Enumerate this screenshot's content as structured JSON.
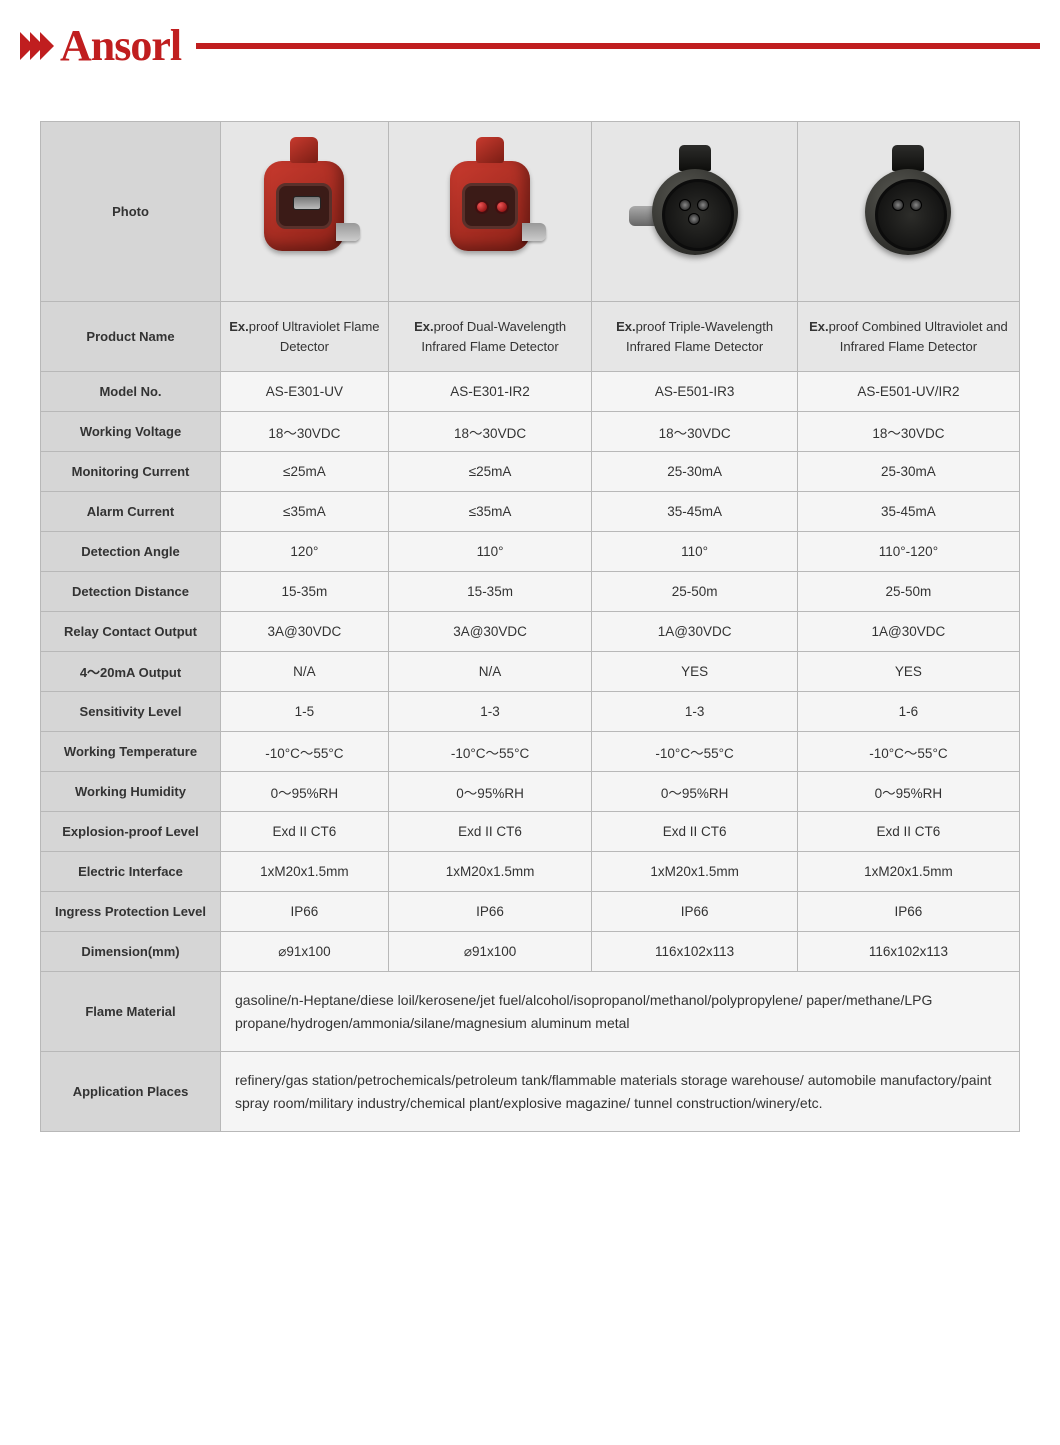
{
  "brand": "Ansorl",
  "colors": {
    "brand_red": "#c01e1f",
    "header_bg": "#d6d6d6",
    "cell_bg": "#f5f5f5",
    "photo_bg": "#e6e6e6",
    "border": "#b8b8b8",
    "text": "#333333"
  },
  "row_labels": {
    "photo": "Photo",
    "product_name": "Product Name",
    "model_no": "Model No.",
    "working_voltage": "Working Voltage",
    "monitoring_current": "Monitoring Current",
    "alarm_current": "Alarm Current",
    "detection_angle": "Detection Angle",
    "detection_distance": "Detection Distance",
    "relay_contact_output": "Relay Contact Output",
    "output_4_20": "4～20mA Output",
    "sensitivity_level": "Sensitivity Level",
    "working_temperature": "Working Temperature",
    "working_humidity": "Working Humidity",
    "explosion_proof_level": "Explosion-proof Level",
    "electric_interface": "Electric Interface",
    "ingress_protection": "Ingress Protection Level",
    "dimension": "Dimension(mm)",
    "flame_material": "Flame Material",
    "application_places": "Application Places"
  },
  "products": [
    {
      "name_prefix": "Ex.",
      "name_rest": "proof Ultraviolet Flame Detector",
      "model": "AS-E301-UV",
      "voltage": "18～30VDC",
      "mon_current": "≤25mA",
      "alarm_current": "≤35mA",
      "angle": "120°",
      "distance": "15-35m",
      "relay": "3A@30VDC",
      "out420": "N/A",
      "sensitivity": "1-5",
      "temp": "-10°C～55°C",
      "humidity": "0～95%RH",
      "ex_level": "Exd II CT6",
      "e_interface": "1xM20x1.5mm",
      "ip": "IP66",
      "dim": "⌀91x100"
    },
    {
      "name_prefix": "Ex.",
      "name_rest": "proof Dual-Wavelength Infrared Flame Detector",
      "model": "AS-E301-IR2",
      "voltage": "18～30VDC",
      "mon_current": "≤25mA",
      "alarm_current": "≤35mA",
      "angle": "110°",
      "distance": "15-35m",
      "relay": "3A@30VDC",
      "out420": "N/A",
      "sensitivity": "1-3",
      "temp": "-10°C～55°C",
      "humidity": "0～95%RH",
      "ex_level": "Exd II CT6",
      "e_interface": "1xM20x1.5mm",
      "ip": "IP66",
      "dim": "⌀91x100"
    },
    {
      "name_prefix": "Ex.",
      "name_rest": "proof Triple-Wavelength Infrared Flame Detector",
      "model": "AS-E501-IR3",
      "voltage": "18～30VDC",
      "mon_current": "25-30mA",
      "alarm_current": "35-45mA",
      "angle": "110°",
      "distance": "25-50m",
      "relay": "1A@30VDC",
      "out420": "YES",
      "sensitivity": "1-3",
      "temp": "-10°C～55°C",
      "humidity": "0～95%RH",
      "ex_level": "Exd II CT6",
      "e_interface": "1xM20x1.5mm",
      "ip": "IP66",
      "dim": "116x102x113"
    },
    {
      "name_prefix": "Ex.",
      "name_rest": "proof Combined Ultraviolet and Infrared Flame Detector",
      "model": "AS-E501-UV/IR2",
      "voltage": "18～30VDC",
      "mon_current": "25-30mA",
      "alarm_current": "35-45mA",
      "angle": "110°-120°",
      "distance": "25-50m",
      "relay": "1A@30VDC",
      "out420": "YES",
      "sensitivity": "1-6",
      "temp": "-10°C～55°C",
      "humidity": "0～95%RH",
      "ex_level": "Exd II CT6",
      "e_interface": "1xM20x1.5mm",
      "ip": "IP66",
      "dim": "116x102x113"
    }
  ],
  "flame_material": "gasoline/n-Heptane/diese loil/kerosene/jet fuel/alcohol/isopropanol/methanol/polypropylene/ paper/methane/LPG propane/hydrogen/ammonia/silane/magnesium aluminum metal",
  "application_places": "refinery/gas station/petrochemicals/petroleum tank/flammable materials storage warehouse/ automobile manufactory/paint spray room/military industry/chemical plant/explosive magazine/ tunnel construction/winery/etc."
}
